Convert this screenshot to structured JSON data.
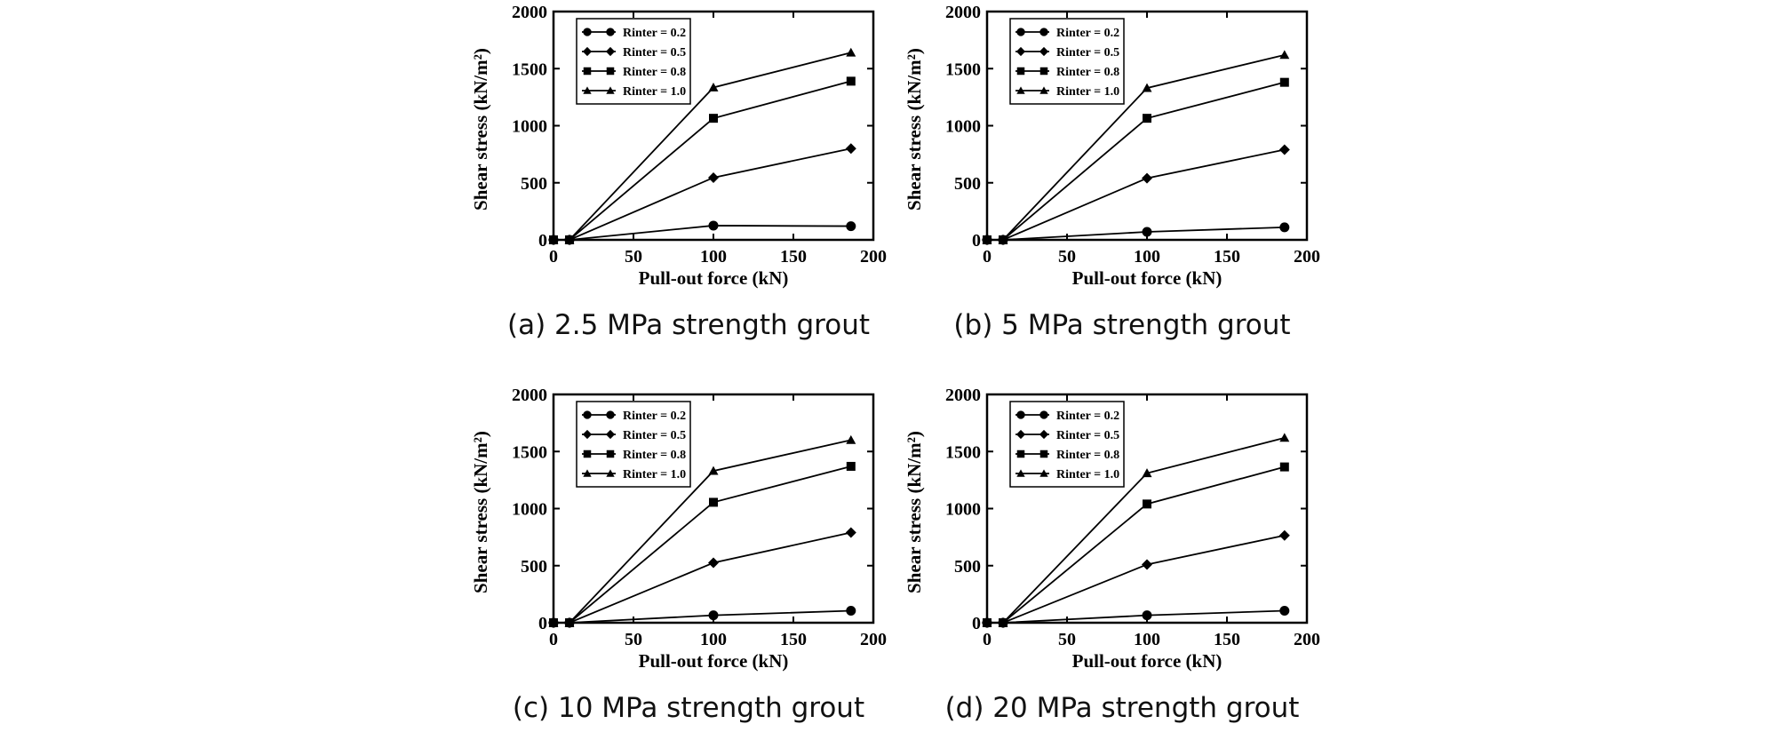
{
  "figure": {
    "panels": [
      {
        "caption": "(a) 2.5 MPa strength grout"
      },
      {
        "caption": "(b) 5 MPa strength grout"
      },
      {
        "caption": "(c) 10 MPa strength grout"
      },
      {
        "caption": "(d) 20 MPa strength grout"
      }
    ]
  },
  "chart_data": [
    {
      "type": "line",
      "xlabel": "Pull-out force (kN)",
      "ylabel": "Shear stress (kN/m²)",
      "xlim": [
        0,
        200
      ],
      "ylim": [
        0,
        2000
      ],
      "xticks": [
        0,
        50,
        100,
        150,
        200
      ],
      "yticks": [
        0,
        500,
        1000,
        1500,
        2000
      ],
      "grid": false,
      "legend_position": "top-left",
      "x": [
        0,
        10,
        100,
        186
      ],
      "series": [
        {
          "name": "Rinter = 0.2",
          "marker": "circle",
          "values": [
            0,
            0,
            125,
            120
          ]
        },
        {
          "name": "Rinter = 0.5",
          "marker": "diamond",
          "values": [
            0,
            0,
            545,
            800
          ]
        },
        {
          "name": "Rinter = 0.8",
          "marker": "square",
          "values": [
            0,
            0,
            1065,
            1390
          ]
        },
        {
          "name": "Rinter = 1.0",
          "marker": "triangle",
          "values": [
            0,
            0,
            1335,
            1640
          ]
        }
      ]
    },
    {
      "type": "line",
      "xlabel": "Pull-out force (kN)",
      "ylabel": "Shear stress (kN/m²)",
      "xlim": [
        0,
        200
      ],
      "ylim": [
        0,
        2000
      ],
      "xticks": [
        0,
        50,
        100,
        150,
        200
      ],
      "yticks": [
        0,
        500,
        1000,
        1500,
        2000
      ],
      "grid": false,
      "legend_position": "top-left",
      "x": [
        0,
        10,
        100,
        186
      ],
      "series": [
        {
          "name": "Rinter = 0.2",
          "marker": "circle",
          "values": [
            0,
            0,
            70,
            110
          ]
        },
        {
          "name": "Rinter = 0.5",
          "marker": "diamond",
          "values": [
            0,
            0,
            540,
            790
          ]
        },
        {
          "name": "Rinter = 0.8",
          "marker": "square",
          "values": [
            0,
            0,
            1065,
            1380
          ]
        },
        {
          "name": "Rinter = 1.0",
          "marker": "triangle",
          "values": [
            0,
            0,
            1330,
            1620
          ]
        }
      ]
    },
    {
      "type": "line",
      "xlabel": "Pull-out force (kN)",
      "ylabel": "Shear stress (kN/m²)",
      "xlim": [
        0,
        200
      ],
      "ylim": [
        0,
        2000
      ],
      "xticks": [
        0,
        50,
        100,
        150,
        200
      ],
      "yticks": [
        0,
        500,
        1000,
        1500,
        2000
      ],
      "grid": false,
      "legend_position": "top-left",
      "x": [
        0,
        10,
        100,
        186
      ],
      "series": [
        {
          "name": "Rinter = 0.2",
          "marker": "circle",
          "values": [
            0,
            0,
            65,
            105
          ]
        },
        {
          "name": "Rinter = 0.5",
          "marker": "diamond",
          "values": [
            0,
            0,
            525,
            790
          ]
        },
        {
          "name": "Rinter = 0.8",
          "marker": "square",
          "values": [
            0,
            0,
            1055,
            1370
          ]
        },
        {
          "name": "Rinter = 1.0",
          "marker": "triangle",
          "values": [
            0,
            0,
            1330,
            1600
          ]
        }
      ]
    },
    {
      "type": "line",
      "xlabel": "Pull-out force (kN)",
      "ylabel": "Shear stress (kN/m²)",
      "xlim": [
        0,
        200
      ],
      "ylim": [
        0,
        2000
      ],
      "xticks": [
        0,
        50,
        100,
        150,
        200
      ],
      "yticks": [
        0,
        500,
        1000,
        1500,
        2000
      ],
      "grid": false,
      "legend_position": "top-left",
      "x": [
        0,
        10,
        100,
        186
      ],
      "series": [
        {
          "name": "Rinter = 0.2",
          "marker": "circle",
          "values": [
            0,
            0,
            65,
            105
          ]
        },
        {
          "name": "Rinter = 0.5",
          "marker": "diamond",
          "values": [
            0,
            0,
            510,
            765
          ]
        },
        {
          "name": "Rinter = 0.8",
          "marker": "square",
          "values": [
            0,
            0,
            1040,
            1365
          ]
        },
        {
          "name": "Rinter = 1.0",
          "marker": "triangle",
          "values": [
            0,
            0,
            1310,
            1620
          ]
        }
      ]
    }
  ]
}
